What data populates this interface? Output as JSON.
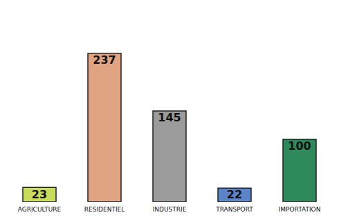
{
  "chart_data": {
    "type": "bar",
    "categories": [
      "AGRICULTURE",
      "RESIDENTIEL",
      "INDUSTRIE",
      "TRANSPORT",
      "IMPORTATION"
    ],
    "values": [
      23,
      237,
      145,
      22,
      100
    ],
    "colors": [
      "#c9dc5c",
      "#e0a483",
      "#9b9b9b",
      "#5b84c9",
      "#2f8a5b"
    ],
    "ylim": [
      0,
      300
    ],
    "data_labels": true,
    "tick_labels": "x"
  }
}
